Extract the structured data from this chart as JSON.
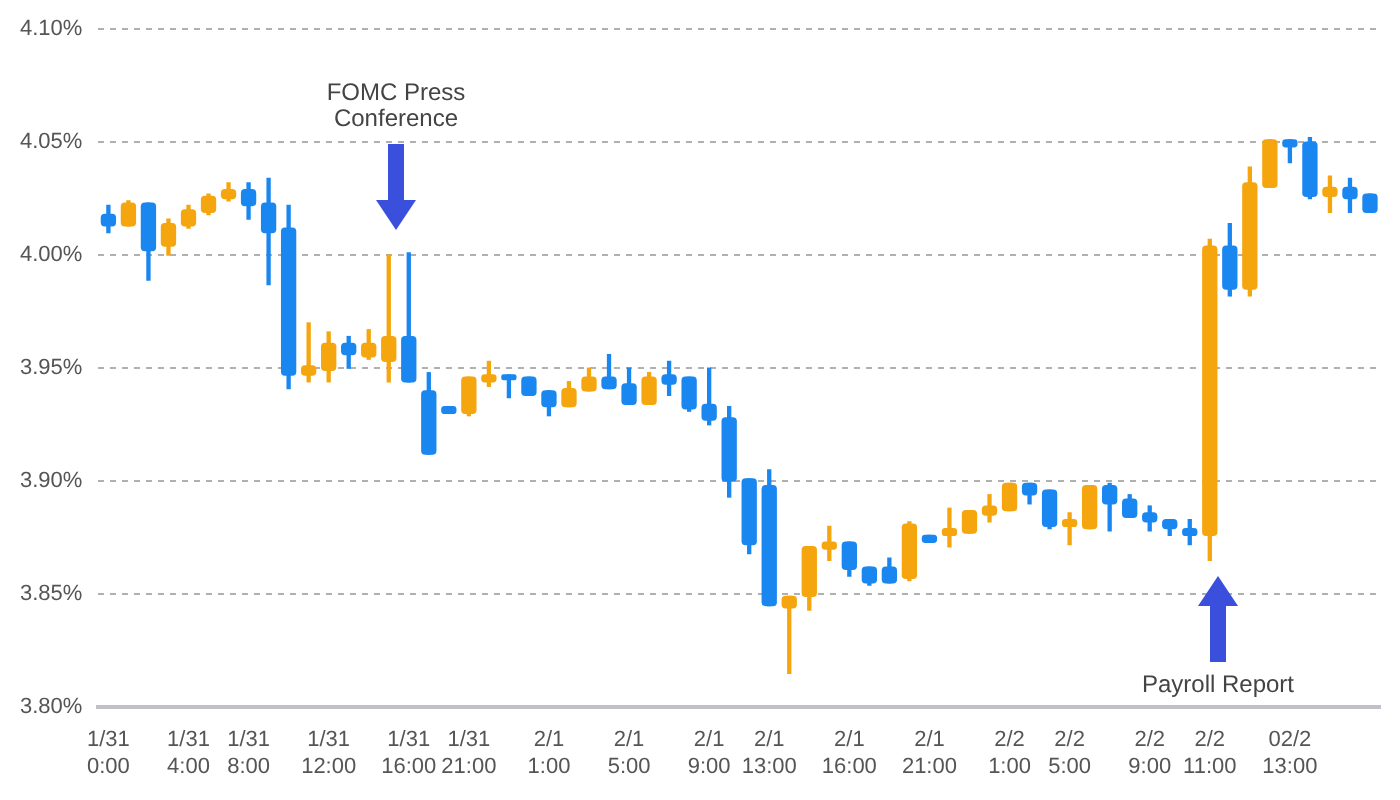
{
  "chart_data": {
    "type": "candlestick",
    "categories": [
      "1/31 0:00",
      null,
      null,
      null,
      "1/31 4:00",
      null,
      null,
      "1/31 8:00",
      null,
      null,
      null,
      "1/31 12:00",
      null,
      null,
      null,
      "1/31 16:00",
      null,
      null,
      "1/31 21:00",
      null,
      null,
      null,
      "2/1 1:00",
      null,
      null,
      null,
      "2/1 5:00",
      null,
      null,
      null,
      "2/1 9:00",
      null,
      null,
      "2/1 13:00",
      null,
      null,
      null,
      "2/1 16:00",
      null,
      null,
      null,
      "2/1 21:00",
      null,
      null,
      null,
      "2/2 1:00",
      null,
      null,
      "2/2 5:00",
      null,
      null,
      null,
      "2/2 9:00",
      null,
      null,
      "2/2 11:00",
      null,
      null,
      null,
      "02/2 13:00",
      null,
      null,
      null,
      null
    ],
    "ohlc": [
      [
        4.018,
        4.022,
        4.01,
        4.013
      ],
      [
        4.013,
        4.024,
        4.013,
        4.023
      ],
      [
        4.023,
        4.023,
        3.989,
        4.002
      ],
      [
        4.004,
        4.016,
        4.0,
        4.014
      ],
      [
        4.013,
        4.022,
        4.012,
        4.02
      ],
      [
        4.019,
        4.027,
        4.018,
        4.026
      ],
      [
        4.025,
        4.032,
        4.024,
        4.029
      ],
      [
        4.029,
        4.032,
        4.016,
        4.022
      ],
      [
        4.023,
        4.034,
        3.987,
        4.01
      ],
      [
        4.012,
        4.022,
        3.941,
        3.947
      ],
      [
        3.947,
        3.97,
        3.944,
        3.951
      ],
      [
        3.949,
        3.966,
        3.944,
        3.961
      ],
      [
        3.961,
        3.964,
        3.95,
        3.956
      ],
      [
        3.955,
        3.967,
        3.954,
        3.961
      ],
      [
        3.953,
        4.0,
        3.944,
        3.964
      ],
      [
        3.964,
        4.001,
        3.944,
        3.944
      ],
      [
        3.94,
        3.948,
        3.912,
        3.912
      ],
      [
        3.933,
        3.933,
        3.93,
        3.93
      ],
      [
        3.93,
        3.946,
        3.929,
        3.946
      ],
      [
        3.944,
        3.953,
        3.942,
        3.947
      ],
      [
        3.947,
        3.947,
        3.937,
        3.945
      ],
      [
        3.946,
        3.946,
        3.938,
        3.938
      ],
      [
        3.94,
        3.94,
        3.929,
        3.933
      ],
      [
        3.933,
        3.944,
        3.933,
        3.941
      ],
      [
        3.94,
        3.95,
        3.94,
        3.946
      ],
      [
        3.946,
        3.956,
        3.941,
        3.941
      ],
      [
        3.943,
        3.95,
        3.934,
        3.934
      ],
      [
        3.934,
        3.948,
        3.934,
        3.946
      ],
      [
        3.947,
        3.953,
        3.938,
        3.943
      ],
      [
        3.946,
        3.946,
        3.931,
        3.932
      ],
      [
        3.934,
        3.95,
        3.925,
        3.927
      ],
      [
        3.928,
        3.933,
        3.893,
        3.9
      ],
      [
        3.901,
        3.901,
        3.868,
        3.872
      ],
      [
        3.898,
        3.905,
        3.845,
        3.845
      ],
      [
        3.844,
        3.849,
        3.815,
        3.849
      ],
      [
        3.849,
        3.871,
        3.843,
        3.871
      ],
      [
        3.87,
        3.88,
        3.865,
        3.873
      ],
      [
        3.873,
        3.873,
        3.858,
        3.861
      ],
      [
        3.862,
        3.862,
        3.854,
        3.855
      ],
      [
        3.862,
        3.866,
        3.855,
        3.855
      ],
      [
        3.857,
        3.882,
        3.856,
        3.881
      ],
      [
        3.876,
        3.876,
        3.873,
        3.873
      ],
      [
        3.876,
        3.888,
        3.871,
        3.879
      ],
      [
        3.877,
        3.887,
        3.877,
        3.887
      ],
      [
        3.885,
        3.894,
        3.882,
        3.889
      ],
      [
        3.887,
        3.899,
        3.887,
        3.899
      ],
      [
        3.899,
        3.899,
        3.89,
        3.894
      ],
      [
        3.896,
        3.896,
        3.879,
        3.88
      ],
      [
        3.88,
        3.886,
        3.872,
        3.883
      ],
      [
        3.879,
        3.898,
        3.879,
        3.898
      ],
      [
        3.898,
        3.899,
        3.878,
        3.89
      ],
      [
        3.892,
        3.894,
        3.884,
        3.884
      ],
      [
        3.886,
        3.889,
        3.878,
        3.882
      ],
      [
        3.883,
        3.883,
        3.876,
        3.879
      ],
      [
        3.879,
        3.883,
        3.872,
        3.876
      ],
      [
        3.876,
        4.007,
        3.865,
        4.004
      ],
      [
        4.004,
        4.014,
        3.982,
        3.985
      ],
      [
        3.985,
        4.039,
        3.982,
        4.032
      ],
      [
        4.03,
        4.051,
        4.03,
        4.051
      ],
      [
        4.051,
        4.051,
        4.041,
        4.048
      ],
      [
        4.05,
        4.052,
        4.025,
        4.026
      ],
      [
        4.026,
        4.035,
        4.019,
        4.03
      ],
      [
        4.03,
        4.034,
        4.019,
        4.025
      ],
      [
        4.027,
        4.027,
        4.019,
        4.019
      ]
    ],
    "colors": [
      "#1a86f0",
      "#f5a50d",
      "#1a86f0",
      "#f5a50d",
      "#f5a50d",
      "#f5a50d",
      "#f5a50d",
      "#1a86f0",
      "#1a86f0",
      "#1a86f0",
      "#f5a50d",
      "#f5a50d",
      "#1a86f0",
      "#f5a50d",
      "#f5a50d",
      "#1a86f0",
      "#1a86f0",
      "#1a86f0",
      "#f5a50d",
      "#f5a50d",
      "#1a86f0",
      "#1a86f0",
      "#1a86f0",
      "#f5a50d",
      "#f5a50d",
      "#1a86f0",
      "#1a86f0",
      "#f5a50d",
      "#1a86f0",
      "#1a86f0",
      "#1a86f0",
      "#1a86f0",
      "#1a86f0",
      "#1a86f0",
      "#f5a50d",
      "#f5a50d",
      "#f5a50d",
      "#1a86f0",
      "#1a86f0",
      "#1a86f0",
      "#f5a50d",
      "#1a86f0",
      "#f5a50d",
      "#f5a50d",
      "#f5a50d",
      "#f5a50d",
      "#1a86f0",
      "#1a86f0",
      "#f5a50d",
      "#f5a50d",
      "#1a86f0",
      "#1a86f0",
      "#1a86f0",
      "#1a86f0",
      "#1a86f0",
      "#f5a50d",
      "#1a86f0",
      "#f5a50d",
      "#f5a50d",
      "#1a86f0",
      "#1a86f0",
      "#f5a50d",
      "#1a86f0",
      "#1a86f0"
    ],
    "ylim": [
      3.8,
      4.1
    ],
    "yticks": [
      {
        "value": 3.8,
        "label": "3.80%"
      },
      {
        "value": 3.85,
        "label": "3.85%"
      },
      {
        "value": 3.9,
        "label": "3.90%"
      },
      {
        "value": 3.95,
        "label": "3.95%"
      },
      {
        "value": 4.0,
        "label": "4.00%"
      },
      {
        "value": 4.05,
        "label": "4.05%"
      },
      {
        "value": 4.1,
        "label": "4.10%"
      }
    ],
    "grid": "y",
    "legend": false,
    "annotations": [
      "FOMC Press Conference",
      "Payroll Report"
    ]
  }
}
